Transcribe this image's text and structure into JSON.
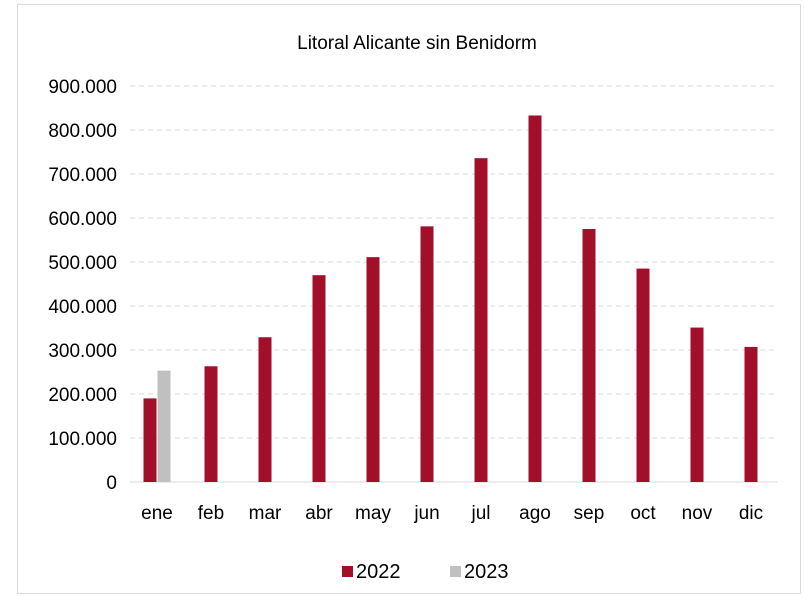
{
  "chart_data": {
    "type": "bar",
    "title": "Litoral Alicante sin Benidorm",
    "xlabel": "",
    "ylabel": "",
    "categories": [
      "ene",
      "feb",
      "mar",
      "abr",
      "may",
      "jun",
      "jul",
      "ago",
      "sep",
      "oct",
      "nov",
      "dic"
    ],
    "series": [
      {
        "name": "2022",
        "color": "#a10f28",
        "values": [
          190000,
          263000,
          329000,
          470000,
          511000,
          581000,
          736000,
          833000,
          575000,
          485000,
          351000,
          307000
        ]
      },
      {
        "name": "2023",
        "color": "#c0c0c0",
        "values": [
          253000,
          null,
          null,
          null,
          null,
          null,
          null,
          null,
          null,
          null,
          null,
          null
        ]
      }
    ],
    "ylim": [
      0,
      900000
    ],
    "yticks": [
      "0",
      "100.000",
      "200.000",
      "300.000",
      "400.000",
      "500.000",
      "600.000",
      "700.000",
      "800.000",
      "900.000"
    ],
    "grid": true,
    "legend": "bottom"
  }
}
